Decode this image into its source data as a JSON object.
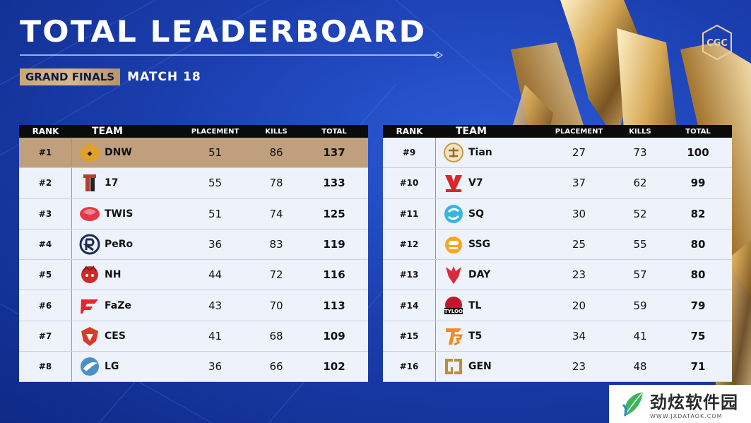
{
  "header": {
    "title": "TOTAL LEADERBOARD",
    "badge": "GRAND FINALS",
    "match": "MATCH 18",
    "event_logo_text": "CGC"
  },
  "columns": {
    "rank": "RANK",
    "team": "TEAM",
    "placement": "PLACEMENT",
    "kills": "KILLS",
    "total": "TOTAL"
  },
  "left_board": [
    {
      "rank": "#1",
      "team": "DNW",
      "placement": "51",
      "kills": "86",
      "total": "137",
      "logo": "dnw-logo"
    },
    {
      "rank": "#2",
      "team": "17",
      "placement": "55",
      "kills": "78",
      "total": "133",
      "logo": "17-gaming-logo"
    },
    {
      "rank": "#3",
      "team": "TWIS",
      "placement": "51",
      "kills": "74",
      "total": "125",
      "logo": "twis-logo"
    },
    {
      "rank": "#4",
      "team": "PeRo",
      "placement": "36",
      "kills": "83",
      "total": "119",
      "logo": "pero-logo"
    },
    {
      "rank": "#5",
      "team": "NH",
      "placement": "44",
      "kills": "72",
      "total": "116",
      "logo": "nh-logo"
    },
    {
      "rank": "#6",
      "team": "FaZe",
      "placement": "43",
      "kills": "70",
      "total": "113",
      "logo": "faze-logo"
    },
    {
      "rank": "#7",
      "team": "CES",
      "placement": "41",
      "kills": "68",
      "total": "109",
      "logo": "ces-logo"
    },
    {
      "rank": "#8",
      "team": "LG",
      "placement": "36",
      "kills": "66",
      "total": "102",
      "logo": "lg-logo"
    }
  ],
  "right_board": [
    {
      "rank": "#9",
      "team": "Tian",
      "placement": "27",
      "kills": "73",
      "total": "100",
      "logo": "tian-logo"
    },
    {
      "rank": "#10",
      "team": "V7",
      "placement": "37",
      "kills": "62",
      "total": "99",
      "logo": "v7-logo"
    },
    {
      "rank": "#11",
      "team": "SQ",
      "placement": "30",
      "kills": "52",
      "total": "82",
      "logo": "sq-logo"
    },
    {
      "rank": "#12",
      "team": "SSG",
      "placement": "25",
      "kills": "55",
      "total": "80",
      "logo": "ssg-logo"
    },
    {
      "rank": "#13",
      "team": "DAY",
      "placement": "23",
      "kills": "57",
      "total": "80",
      "logo": "day-logo"
    },
    {
      "rank": "#14",
      "team": "TL",
      "placement": "20",
      "kills": "59",
      "total": "79",
      "logo": "tl-logo"
    },
    {
      "rank": "#15",
      "team": "T5",
      "placement": "34",
      "kills": "41",
      "total": "75",
      "logo": "t5-logo"
    },
    {
      "rank": "#16",
      "team": "GEN",
      "placement": "23",
      "kills": "48",
      "total": "71",
      "logo": "gen-logo"
    }
  ],
  "watermark": {
    "cn": "劲炫软件园",
    "url": "WWW.JXDATAOK.COM"
  },
  "colors": {
    "background": "#1b3fb0",
    "gold": "#c9a877",
    "first_row": "#bf9f7c",
    "row": "#eef2fb",
    "header": "#0b0b0b"
  }
}
